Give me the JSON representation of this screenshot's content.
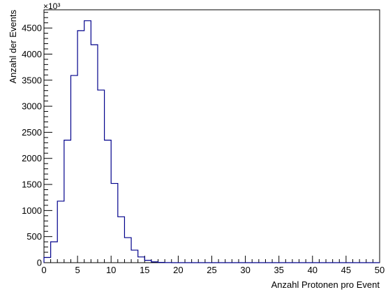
{
  "chart_data": {
    "type": "histogram",
    "xlabel": "Anzahl Protonen pro Event",
    "ylabel": "Anzahl der Events",
    "y_multiplier_label": "×10³",
    "xlim": [
      0,
      50
    ],
    "ylim": [
      0,
      4850
    ],
    "bin_width": 1,
    "x_ticks": [
      0,
      5,
      10,
      15,
      20,
      25,
      30,
      35,
      40,
      45,
      50
    ],
    "y_ticks": [
      0,
      500,
      1000,
      1500,
      2000,
      2500,
      3000,
      3500,
      4000,
      4500
    ],
    "bins": [
      {
        "x0": 0,
        "x1": 1,
        "value": 100
      },
      {
        "x0": 1,
        "x1": 2,
        "value": 400
      },
      {
        "x0": 2,
        "x1": 3,
        "value": 1180
      },
      {
        "x0": 3,
        "x1": 4,
        "value": 2350
      },
      {
        "x0": 4,
        "x1": 5,
        "value": 3590
      },
      {
        "x0": 5,
        "x1": 6,
        "value": 4450
      },
      {
        "x0": 6,
        "x1": 7,
        "value": 4640
      },
      {
        "x0": 7,
        "x1": 8,
        "value": 4180
      },
      {
        "x0": 8,
        "x1": 9,
        "value": 3310
      },
      {
        "x0": 9,
        "x1": 10,
        "value": 2350
      },
      {
        "x0": 10,
        "x1": 11,
        "value": 1520
      },
      {
        "x0": 11,
        "x1": 12,
        "value": 880
      },
      {
        "x0": 12,
        "x1": 13,
        "value": 480
      },
      {
        "x0": 13,
        "x1": 14,
        "value": 240
      },
      {
        "x0": 14,
        "x1": 15,
        "value": 110
      },
      {
        "x0": 15,
        "x1": 16,
        "value": 45
      },
      {
        "x0": 16,
        "x1": 17,
        "value": 15
      },
      {
        "x0": 17,
        "x1": 18,
        "value": 5
      },
      {
        "x0": 18,
        "x1": 19,
        "value": 2
      },
      {
        "x0": 19,
        "x1": 20,
        "value": 0
      }
    ],
    "line_color": "#00008b",
    "grid": false,
    "legend": "none"
  }
}
